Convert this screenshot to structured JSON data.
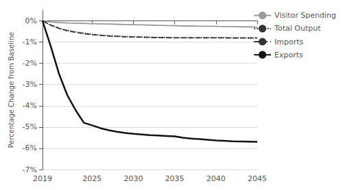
{
  "chart_data": {
    "type": "line",
    "ylabel": "Percentage Change from Baseline",
    "x": [
      2019,
      2020,
      2021,
      2022,
      2023,
      2024,
      2025,
      2026,
      2027,
      2028,
      2029,
      2030,
      2031,
      2032,
      2033,
      2034,
      2035,
      2036,
      2037,
      2038,
      2039,
      2040,
      2041,
      2042,
      2043,
      2044,
      2045
    ],
    "series": [
      {
        "name": "Visitor Spending",
        "color": "#999999",
        "line_style": "solid",
        "values": [
          0.0,
          -0.05,
          -0.08,
          -0.1,
          -0.11,
          -0.12,
          -0.13,
          -0.14,
          -0.15,
          -0.16,
          -0.17,
          -0.18,
          -0.19,
          -0.2,
          -0.21,
          -0.22,
          -0.23,
          -0.24,
          -0.24,
          -0.25,
          -0.25,
          -0.26,
          -0.27,
          -0.27,
          -0.28,
          -0.28,
          -0.29
        ]
      },
      {
        "name": "Total Output",
        "color": "#333333",
        "line_style": "dotted",
        "values": [
          0.0,
          -0.2,
          -0.35,
          -0.45,
          -0.52,
          -0.58,
          -0.63,
          -0.67,
          -0.7,
          -0.72,
          -0.74,
          -0.75,
          -0.76,
          -0.77,
          -0.78,
          -0.78,
          -0.79,
          -0.79,
          -0.79,
          -0.79,
          -0.79,
          -0.79,
          -0.79,
          -0.8,
          -0.8,
          -0.8,
          -0.8
        ]
      },
      {
        "name": "Imports",
        "color": "#333333",
        "line_style": "dashed",
        "values": [
          0.0,
          -0.2,
          -0.35,
          -0.47,
          -0.54,
          -0.6,
          -0.65,
          -0.68,
          -0.71,
          -0.73,
          -0.75,
          -0.76,
          -0.77,
          -0.78,
          -0.79,
          -0.79,
          -0.8,
          -0.8,
          -0.8,
          -0.8,
          -0.8,
          -0.8,
          -0.8,
          -0.81,
          -0.81,
          -0.81,
          -0.81
        ]
      },
      {
        "name": "Exports",
        "color": "#111111",
        "line_style": "solid",
        "values": [
          0.0,
          -1.2,
          -2.5,
          -3.5,
          -4.2,
          -4.8,
          -4.92,
          -5.05,
          -5.15,
          -5.22,
          -5.28,
          -5.32,
          -5.35,
          -5.38,
          -5.4,
          -5.42,
          -5.44,
          -5.5,
          -5.54,
          -5.57,
          -5.6,
          -5.63,
          -5.65,
          -5.67,
          -5.68,
          -5.69,
          -5.7
        ]
      }
    ],
    "xlim": [
      2019,
      2045
    ],
    "xticks": [
      2019,
      2025,
      2030,
      2035,
      2040,
      2045
    ],
    "ylim": [
      -7,
      0.5
    ],
    "yticks": [
      {
        "value": 0,
        "label": "0%"
      },
      {
        "value": -1,
        "label": "-1%"
      },
      {
        "value": -2,
        "label": "-2%"
      },
      {
        "value": -3,
        "label": "-3%"
      },
      {
        "value": -4,
        "label": "-4%"
      },
      {
        "value": -5,
        "label": "-5%"
      },
      {
        "value": -6,
        "label": "-6%"
      },
      {
        "value": -7,
        "label": "-7%"
      }
    ],
    "grid": "y",
    "legend": "right"
  }
}
